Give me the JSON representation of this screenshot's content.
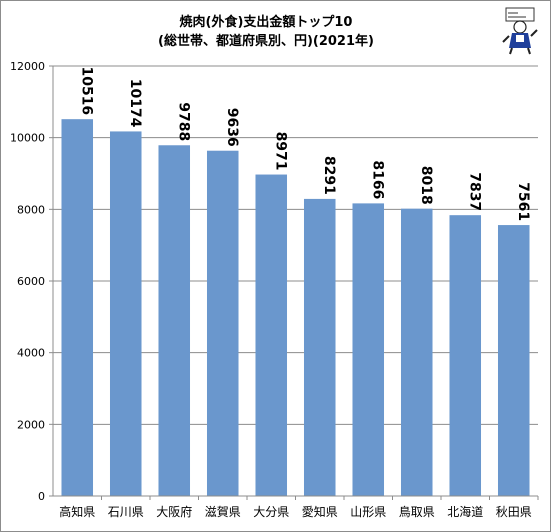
{
  "chart_data": {
    "type": "bar",
    "title": "焼肉(外食)支出金額トップ10",
    "subtitle": "(総世帯、都道府県別、円)(2021年)",
    "categories": [
      "高知県",
      "石川県",
      "大阪府",
      "滋賀県",
      "大分県",
      "愛知県",
      "山形県",
      "鳥取県",
      "北海道",
      "秋田県"
    ],
    "values": [
      10516,
      10174,
      9788,
      9636,
      8971,
      8291,
      8166,
      8018,
      7837,
      7561
    ],
    "ylim": [
      0,
      12000
    ],
    "yticks": [
      0,
      2000,
      4000,
      6000,
      8000,
      10000,
      12000
    ],
    "grid": true,
    "legend": "none",
    "bar_color": "#6a97cd"
  },
  "mascot": {
    "icon": "mascot-figure-icon"
  }
}
